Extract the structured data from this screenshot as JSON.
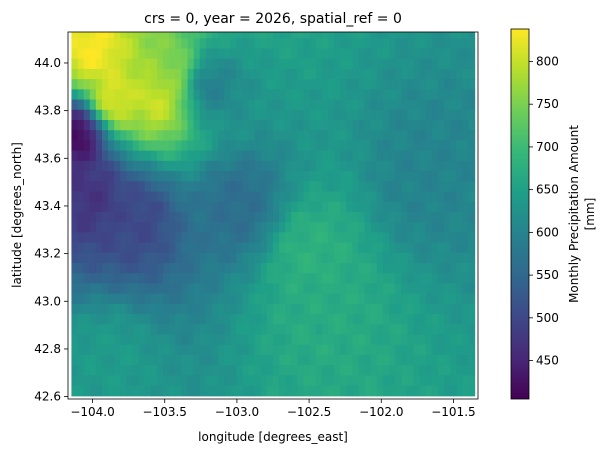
{
  "chart_data": {
    "type": "heatmap",
    "title": "crs = 0, year = 2026, spatial_ref = 0",
    "xlabel": "longitude [degrees_east]",
    "ylabel": "latitude [degrees_north]",
    "colorbar_label_line1": "Monthly Precipitation Amount",
    "colorbar_label_line2": "[mm]",
    "colormap": "viridis",
    "colormap_stops": [
      "#440154",
      "#482878",
      "#3e4989",
      "#31688e",
      "#26828e",
      "#1f9e89",
      "#35b779",
      "#6ece58",
      "#b5de2b",
      "#fde725"
    ],
    "value_range": [
      405,
      838
    ],
    "xlim": [
      -104.17,
      -101.33
    ],
    "ylim": [
      42.59,
      44.13
    ],
    "grid": false,
    "xticks": [
      -104.0,
      -103.5,
      -103.0,
      -102.5,
      -102.0,
      -101.5
    ],
    "xtick_labels": [
      "−104.0",
      "−103.5",
      "−103.0",
      "−102.5",
      "−102.0",
      "−101.5"
    ],
    "yticks": [
      42.6,
      42.8,
      43.0,
      43.2,
      43.4,
      43.6,
      43.8,
      44.0
    ],
    "ytick_labels": [
      "42.6",
      "42.8",
      "43.0",
      "43.2",
      "43.4",
      "43.6",
      "43.8",
      "44.0"
    ],
    "cbar_ticks": [
      450,
      500,
      550,
      600,
      650,
      700,
      750,
      800
    ],
    "cbar_tick_labels": [
      "450",
      "500",
      "550",
      "600",
      "650",
      "700",
      "750",
      "800"
    ],
    "grid_lon": [
      -104.125,
      -101.375
    ],
    "grid_lat": [
      44.125,
      42.625
    ],
    "grid_rows": 36,
    "grid_cols": 66,
    "field_features": [
      {
        "region": "northwest peak",
        "lon": -104.0,
        "lat": 44.05,
        "value": 838
      },
      {
        "region": "northwest peak",
        "lon": -103.85,
        "lat": 43.85,
        "value": 820
      },
      {
        "region": "northwest peak",
        "lon": -103.55,
        "lat": 43.85,
        "value": 810
      },
      {
        "region": "northwest peak",
        "lon": -103.45,
        "lat": 43.95,
        "value": 760
      },
      {
        "region": "western low",
        "lon": -104.1,
        "lat": 43.7,
        "value": 410
      },
      {
        "region": "western low",
        "lon": -104.0,
        "lat": 43.45,
        "value": 470
      },
      {
        "region": "western low",
        "lon": -103.7,
        "lat": 43.35,
        "value": 500
      },
      {
        "region": "central",
        "lon": -103.2,
        "lat": 43.9,
        "value": 590
      },
      {
        "region": "central",
        "lon": -103.0,
        "lat": 43.4,
        "value": 560
      },
      {
        "region": "southeast moderate",
        "lon": -102.5,
        "lat": 43.2,
        "value": 680
      },
      {
        "region": "southeast moderate",
        "lon": -102.4,
        "lat": 42.95,
        "value": 670
      },
      {
        "region": "southwest",
        "lon": -103.9,
        "lat": 42.75,
        "value": 640
      },
      {
        "region": "east",
        "lon": -101.7,
        "lat": 43.5,
        "value": 600
      }
    ]
  }
}
